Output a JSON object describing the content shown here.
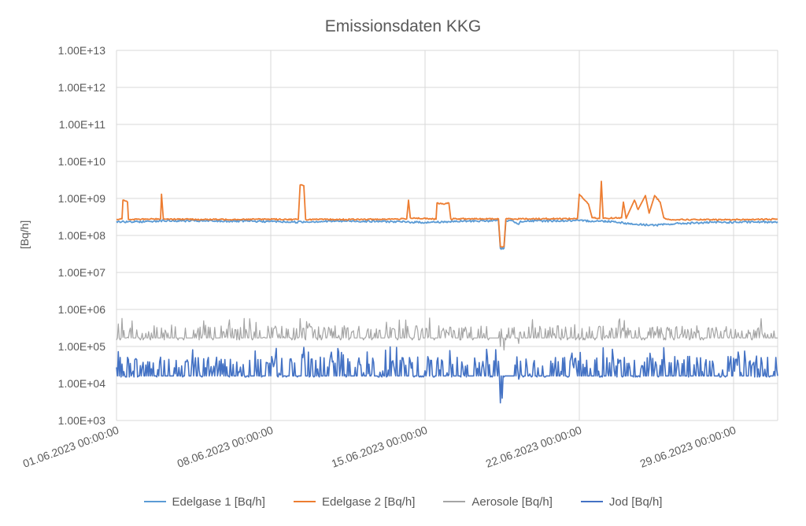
{
  "chart_data": {
    "type": "line",
    "title": "Emissionsdaten KKG",
    "xlabel": "",
    "ylabel": "[Bq/h]",
    "y_scale": "log",
    "ylim": [
      1000,
      10000000000000
    ],
    "y_ticks": [
      1000,
      10000,
      100000,
      1000000,
      10000000,
      100000000,
      1000000000,
      10000000000,
      100000000000,
      1000000000000,
      10000000000000
    ],
    "y_tick_labels": [
      "1.00E+03",
      "1.00E+04",
      "1.00E+05",
      "1.00E+06",
      "1.00E+07",
      "1.00E+08",
      "1.00E+09",
      "1.00E+10",
      "1.00E+11",
      "1.00E+12",
      "1.00E+13"
    ],
    "xlim": [
      "01.06.2023 00:00:00",
      "01.07.2023 00:00:00"
    ],
    "x_ticks": [
      "01.06.2023 00:00:00",
      "08.06.2023 00:00:00",
      "15.06.2023 00:00:00",
      "22.06.2023 00:00:00",
      "29.06.2023 00:00:00"
    ],
    "grid": true,
    "legend_position": "bottom",
    "series": [
      {
        "name": "Edelgase 1 [Bq/h]",
        "color": "#5B9BD5",
        "points": [
          [
            "01.06.2023 00:00:00",
            240000000
          ],
          [
            "01.06.2023 12:00:00",
            230000000
          ],
          [
            "02.06.2023 12:00:00",
            240000000
          ],
          [
            "03.06.2023 00:00:00",
            250000000
          ],
          [
            "05.06.2023 00:00:00",
            245000000
          ],
          [
            "08.06.2023 00:00:00",
            240000000
          ],
          [
            "09.06.2023 00:00:00",
            230000000
          ],
          [
            "11.06.2023 00:00:00",
            245000000
          ],
          [
            "13.06.2023 00:00:00",
            240000000
          ],
          [
            "15.06.2023 00:00:00",
            225000000
          ],
          [
            "17.06.2023 00:00:00",
            245000000
          ],
          [
            "18.06.2023 08:00:00",
            250000000
          ],
          [
            "18.06.2023 10:00:00",
            45000000
          ],
          [
            "18.06.2023 14:00:00",
            45000000
          ],
          [
            "18.06.2023 16:00:00",
            250000000
          ],
          [
            "19.06.2023 00:00:00",
            245000000
          ],
          [
            "19.06.2023 06:00:00",
            200000000
          ],
          [
            "19.06.2023 08:00:00",
            245000000
          ],
          [
            "22.06.2023 00:00:00",
            250000000
          ],
          [
            "23.06.2023 12:00:00",
            240000000
          ],
          [
            "24.06.2023 12:00:00",
            200000000
          ],
          [
            "25.06.2023 12:00:00",
            190000000
          ],
          [
            "26.06.2023 12:00:00",
            210000000
          ],
          [
            "28.06.2023 00:00:00",
            225000000
          ],
          [
            "30.06.2023 00:00:00",
            230000000
          ],
          [
            "01.07.2023 00:00:00",
            235000000
          ]
        ]
      },
      {
        "name": "Edelgase 2 [Bq/h]",
        "color": "#ED7D31",
        "points": [
          [
            "01.06.2023 00:00:00",
            270000000
          ],
          [
            "01.06.2023 06:00:00",
            280000000
          ],
          [
            "01.06.2023 07:00:00",
            900000000
          ],
          [
            "01.06.2023 12:00:00",
            800000000
          ],
          [
            "01.06.2023 13:00:00",
            270000000
          ],
          [
            "03.06.2023 00:00:00",
            280000000
          ],
          [
            "03.06.2023 01:00:00",
            1300000000
          ],
          [
            "03.06.2023 03:00:00",
            280000000
          ],
          [
            "05.06.2023 00:00:00",
            270000000
          ],
          [
            "08.06.2023 00:00:00",
            275000000
          ],
          [
            "09.06.2023 06:00:00",
            270000000
          ],
          [
            "09.06.2023 08:00:00",
            2300000000
          ],
          [
            "09.06.2023 12:00:00",
            2200000000
          ],
          [
            "09.06.2023 14:00:00",
            270000000
          ],
          [
            "12.06.2023 00:00:00",
            270000000
          ],
          [
            "14.06.2023 04:00:00",
            280000000
          ],
          [
            "14.06.2023 06:00:00",
            900000000
          ],
          [
            "14.06.2023 08:00:00",
            300000000
          ],
          [
            "15.06.2023 12:00:00",
            275000000
          ],
          [
            "15.06.2023 13:00:00",
            750000000
          ],
          [
            "15.06.2023 20:00:00",
            700000000
          ],
          [
            "16.06.2023 02:00:00",
            750000000
          ],
          [
            "16.06.2023 04:00:00",
            280000000
          ],
          [
            "18.06.2023 08:00:00",
            280000000
          ],
          [
            "18.06.2023 10:00:00",
            50000000
          ],
          [
            "18.06.2023 14:00:00",
            50000000
          ],
          [
            "18.06.2023 16:00:00",
            280000000
          ],
          [
            "21.06.2023 22:00:00",
            285000000
          ],
          [
            "22.06.2023 00:00:00",
            1300000000
          ],
          [
            "22.06.2023 10:00:00",
            700000000
          ],
          [
            "22.06.2023 14:00:00",
            300000000
          ],
          [
            "22.06.2023 22:00:00",
            285000000
          ],
          [
            "23.06.2023 00:00:00",
            2900000000
          ],
          [
            "23.06.2023 02:00:00",
            290000000
          ],
          [
            "23.06.2023 22:00:00",
            300000000
          ],
          [
            "24.06.2023 00:00:00",
            800000000
          ],
          [
            "24.06.2023 03:00:00",
            290000000
          ],
          [
            "24.06.2023 12:00:00",
            900000000
          ],
          [
            "24.06.2023 16:00:00",
            500000000
          ],
          [
            "25.06.2023 00:00:00",
            1200000000
          ],
          [
            "25.06.2023 04:00:00",
            400000000
          ],
          [
            "25.06.2023 10:00:00",
            1200000000
          ],
          [
            "25.06.2023 16:00:00",
            800000000
          ],
          [
            "25.06.2023 20:00:00",
            300000000
          ],
          [
            "26.06.2023 00:00:00",
            270000000
          ],
          [
            "28.06.2023 00:00:00",
            265000000
          ],
          [
            "30.06.2023 00:00:00",
            270000000
          ],
          [
            "01.07.2023 00:00:00",
            275000000
          ]
        ]
      },
      {
        "name": "Aerosole [Bq/h]",
        "color": "#A5A5A5",
        "baseline": 170000,
        "range": [
          150000,
          600000
        ],
        "points": [
          [
            "18.06.2023 10:00:00",
            100000
          ],
          [
            "18.06.2023 14:00:00",
            80000
          ],
          [
            "19.06.2023 06:00:00",
            120000
          ]
        ]
      },
      {
        "name": "Jod [Bq/h]",
        "color": "#4472C4",
        "baseline": 16000,
        "range": [
          15000,
          100000
        ],
        "points": [
          [
            "18.06.2023 10:00:00",
            3000
          ],
          [
            "18.06.2023 12:00:00",
            4000
          ],
          [
            "19.06.2023 06:00:00",
            13000
          ]
        ]
      }
    ]
  }
}
